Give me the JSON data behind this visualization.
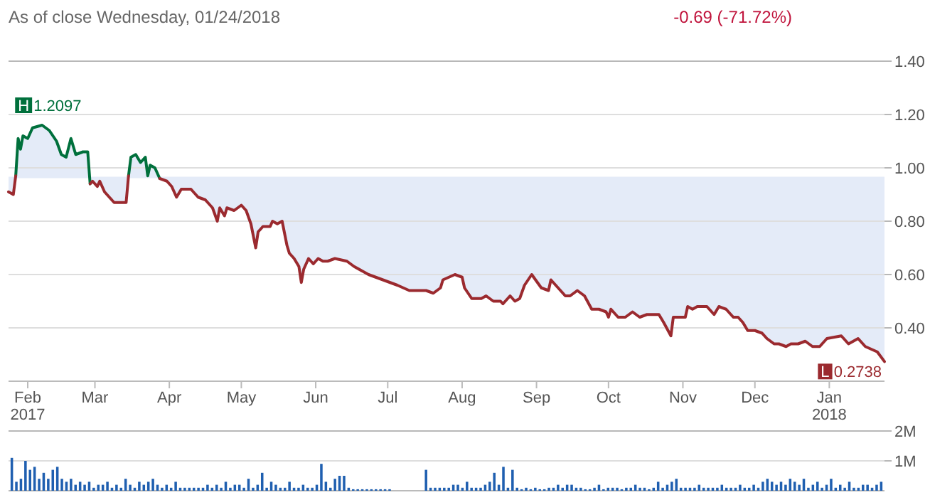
{
  "chart_data": [
    {
      "type": "line",
      "subtitle": "As of close Wednesday, 01/24/2018",
      "annotations": [
        "-0.69 (-71.72%)",
        "H 1.2097",
        {
          "text": "L 0.2738",
          "x": "2018-01-24",
          "y": 0.2738
        }
      ],
      "x": [
        "2017-01-24",
        "2017-01-26",
        "2017-01-27",
        "2017-01-28",
        "2017-01-29",
        "2017-01-30",
        "2017-02-01",
        "2017-02-03",
        "2017-02-07",
        "2017-02-10",
        "2017-02-13",
        "2017-02-15",
        "2017-02-17",
        "2017-02-19",
        "2017-02-21",
        "2017-02-24",
        "2017-02-26",
        "2017-02-27",
        "2017-02-28",
        "2017-03-02",
        "2017-03-03",
        "2017-03-05",
        "2017-03-08",
        "2017-03-09",
        "2017-03-12",
        "2017-03-14",
        "2017-03-15",
        "2017-03-16",
        "2017-03-18",
        "2017-03-20",
        "2017-03-22",
        "2017-03-23",
        "2017-03-24",
        "2017-03-26",
        "2017-03-28",
        "2017-03-31",
        "2017-04-02",
        "2017-04-04",
        "2017-04-06",
        "2017-04-10",
        "2017-04-13",
        "2017-04-16",
        "2017-04-19",
        "2017-04-21",
        "2017-04-22",
        "2017-04-24",
        "2017-04-25",
        "2017-04-28",
        "2017-05-01",
        "2017-05-03",
        "2017-05-05",
        "2017-05-07",
        "2017-05-08",
        "2017-05-10",
        "2017-05-13",
        "2017-05-14",
        "2017-05-16",
        "2017-05-18",
        "2017-05-20",
        "2017-05-21",
        "2017-05-23",
        "2017-05-25",
        "2017-05-26",
        "2017-05-27",
        "2017-05-29",
        "2017-05-31",
        "2017-06-02",
        "2017-06-04",
        "2017-06-06",
        "2017-06-09",
        "2017-06-14",
        "2017-06-17",
        "2017-06-23",
        "2017-06-29",
        "2017-07-05",
        "2017-07-10",
        "2017-07-17",
        "2017-07-20",
        "2017-07-23",
        "2017-07-24",
        "2017-07-29",
        "2017-08-01",
        "2017-08-02",
        "2017-08-05",
        "2017-08-09",
        "2017-08-11",
        "2017-08-14",
        "2017-08-17",
        "2017-08-18",
        "2017-08-21",
        "2017-08-23",
        "2017-08-25",
        "2017-08-27",
        "2017-08-30",
        "2017-09-03",
        "2017-09-06",
        "2017-09-07",
        "2017-09-10",
        "2017-09-13",
        "2017-09-15",
        "2017-09-18",
        "2017-09-21",
        "2017-09-24",
        "2017-09-27",
        "2017-09-30",
        "2017-10-01",
        "2017-10-02",
        "2017-10-05",
        "2017-10-08",
        "2017-10-11",
        "2017-10-14",
        "2017-10-17",
        "2017-10-22",
        "2017-10-24",
        "2017-10-27",
        "2017-10-28",
        "2017-10-30",
        "2017-11-02",
        "2017-11-03",
        "2017-11-05",
        "2017-11-07",
        "2017-11-11",
        "2017-11-14",
        "2017-11-16",
        "2017-11-19",
        "2017-11-22",
        "2017-11-24",
        "2017-11-26",
        "2017-11-28",
        "2017-12-01",
        "2017-12-04",
        "2017-12-06",
        "2017-12-09",
        "2017-12-11",
        "2017-12-14",
        "2017-12-16",
        "2017-12-19",
        "2017-12-22",
        "2017-12-25",
        "2017-12-28",
        "2017-12-31",
        "2018-01-06",
        "2018-01-09",
        "2018-01-13",
        "2018-01-16",
        "2018-01-21",
        "2018-01-24"
      ],
      "series": [
        {
          "type": "line",
          "color": "#00703c",
          "values": [
            null,
            null,
            0.97,
            1.11,
            1.07,
            1.12,
            1.11,
            1.15,
            1.16,
            1.14,
            1.1,
            1.05,
            1.04,
            1.11,
            1.05,
            1.06,
            1.06,
            0.94,
            null,
            null,
            null,
            null,
            null,
            null,
            null,
            null,
            0.97,
            1.04,
            1.05,
            1.02,
            1.04,
            0.97,
            1.01,
            1.0,
            0.96,
            null,
            null,
            null,
            null,
            null,
            null,
            null,
            null,
            null,
            null,
            null,
            null,
            null,
            null,
            null,
            null,
            null,
            null,
            null,
            null,
            null,
            null,
            null,
            null,
            null,
            null,
            null,
            null,
            null,
            null,
            null,
            null,
            null,
            null,
            null,
            null,
            null,
            null,
            null,
            null,
            null,
            null,
            null,
            null,
            null,
            null,
            null,
            null,
            null,
            null,
            null,
            null,
            null,
            null,
            null,
            null,
            null,
            null,
            null,
            null,
            null,
            null,
            null,
            null,
            null,
            null,
            null,
            null,
            null,
            null,
            null,
            null,
            null,
            null,
            null,
            null,
            null,
            null,
            null,
            null,
            null,
            null,
            null,
            null,
            null,
            null,
            null,
            null,
            null,
            null,
            null,
            null,
            null,
            null,
            null,
            null,
            null,
            null,
            null,
            null,
            null,
            null,
            null,
            null,
            null,
            null,
            null,
            null,
            null,
            null,
            null,
            null
          ]
        },
        {
          "type": "line",
          "color": "#9b2a2f",
          "upper": [
            0.9638,
            0.9638,
            0.97,
            1.11,
            1.07,
            1.12,
            1.11,
            1.15,
            1.16,
            1.14,
            1.1,
            1.05,
            1.04,
            1.11,
            1.05,
            1.06,
            1.06,
            0.9638,
            0.9638,
            0.9638,
            0.9638,
            0.9638,
            0.9638,
            0.9638,
            0.9638,
            0.9638,
            0.97,
            1.04,
            1.05,
            1.02,
            1.04,
            0.97,
            1.01,
            1.0,
            0.9638,
            0.9638,
            0.9638,
            0.9638,
            0.9638,
            0.9638,
            0.9638,
            0.9638,
            0.9638,
            0.9638,
            0.9638,
            0.9638,
            0.9638,
            0.9638,
            0.9638,
            0.9638,
            0.9638,
            0.9638,
            0.9638,
            0.9638,
            0.9638,
            0.9638,
            0.9638,
            0.9638,
            0.9638,
            0.9638,
            0.9638,
            0.9638,
            0.9638,
            0.9638,
            0.9638,
            0.9638,
            0.9638,
            0.9638,
            0.9638,
            0.9638,
            0.9638,
            0.9638,
            0.9638,
            0.9638,
            0.9638,
            0.9638,
            0.9638,
            0.9638,
            0.9638,
            0.9638,
            0.9638,
            0.9638,
            0.9638,
            0.9638,
            0.9638,
            0.9638,
            0.9638,
            0.9638,
            0.9638,
            0.9638,
            0.9638,
            0.9638,
            0.9638,
            0.9638,
            0.9638,
            0.9638,
            0.9638,
            0.9638,
            0.9638,
            0.9638,
            0.9638,
            0.9638,
            0.9638,
            0.9638,
            0.9638,
            0.9638,
            0.9638,
            0.9638,
            0.9638,
            0.9638,
            0.9638,
            0.9638,
            0.9638,
            0.9638,
            0.9638,
            0.9638,
            0.9638,
            0.9638,
            0.9638,
            0.9638,
            0.9638,
            0.9638,
            0.9638,
            0.9638,
            0.9638,
            0.9638,
            0.9638,
            0.9638,
            0.9638,
            0.9638,
            0.9638,
            0.9638,
            0.9638,
            0.9638,
            0.9638,
            0.9638,
            0.9638,
            0.9638,
            0.9638,
            0.9638,
            0.9638,
            0.9638,
            0.9638,
            0.9638,
            0.9638,
            0.9638,
            0.9638
          ],
          "lower": [
            0.91,
            0.9,
            0.9638,
            0.9638,
            0.9638,
            0.9638,
            0.9638,
            0.9638,
            0.9638,
            0.9638,
            0.9638,
            0.9638,
            0.9638,
            0.9638,
            0.9638,
            0.9638,
            0.9638,
            0.94,
            0.95,
            0.93,
            0.95,
            0.91,
            0.88,
            0.87,
            0.87,
            0.87,
            0.9638,
            0.9638,
            0.9638,
            0.9638,
            0.9638,
            0.9638,
            0.9638,
            0.9638,
            0.96,
            0.95,
            0.93,
            0.89,
            0.92,
            0.92,
            0.89,
            0.88,
            0.85,
            0.8,
            0.85,
            0.82,
            0.85,
            0.84,
            0.86,
            0.84,
            0.79,
            0.7,
            0.76,
            0.78,
            0.78,
            0.8,
            0.79,
            0.8,
            0.71,
            0.68,
            0.66,
            0.63,
            0.57,
            0.62,
            0.66,
            0.64,
            0.66,
            0.65,
            0.65,
            0.66,
            0.65,
            0.63,
            0.6,
            0.58,
            0.56,
            0.54,
            0.54,
            0.53,
            0.55,
            0.58,
            0.6,
            0.59,
            0.55,
            0.51,
            0.51,
            0.52,
            0.5,
            0.5,
            0.49,
            0.52,
            0.5,
            0.51,
            0.56,
            0.6,
            0.55,
            0.54,
            0.58,
            0.55,
            0.52,
            0.52,
            0.54,
            0.52,
            0.47,
            0.47,
            0.46,
            0.44,
            0.47,
            0.44,
            0.44,
            0.46,
            0.44,
            0.45,
            0.45,
            0.42,
            0.37,
            0.44,
            0.44,
            0.44,
            0.48,
            0.47,
            0.48,
            0.48,
            0.45,
            0.48,
            0.47,
            0.44,
            0.44,
            0.42,
            0.39,
            0.39,
            0.38,
            0.36,
            0.34,
            0.34,
            0.33,
            0.34,
            0.34,
            0.35,
            0.33,
            0.33,
            0.36,
            0.37,
            0.34,
            0.36,
            0.33,
            0.31,
            0.2738
          ],
          "values": [
            0.91,
            0.9,
            0.97,
            null,
            null,
            null,
            null,
            null,
            null,
            null,
            null,
            null,
            null,
            null,
            null,
            null,
            null,
            0.94,
            0.95,
            0.93,
            0.95,
            0.91,
            0.88,
            0.87,
            0.87,
            0.87,
            0.97,
            null,
            null,
            null,
            null,
            null,
            null,
            null,
            0.96,
            0.95,
            0.93,
            0.89,
            0.92,
            0.92,
            0.89,
            0.88,
            0.85,
            0.8,
            0.85,
            0.82,
            0.85,
            0.84,
            0.86,
            0.84,
            0.79,
            0.7,
            0.76,
            0.78,
            0.78,
            0.8,
            0.79,
            0.8,
            0.71,
            0.68,
            0.66,
            0.63,
            0.57,
            0.62,
            0.66,
            0.64,
            0.66,
            0.65,
            0.65,
            0.66,
            0.65,
            0.63,
            0.6,
            0.58,
            0.56,
            0.54,
            0.54,
            0.53,
            0.55,
            0.58,
            0.6,
            0.59,
            0.55,
            0.51,
            0.51,
            0.52,
            0.5,
            0.5,
            0.49,
            0.52,
            0.5,
            0.51,
            0.56,
            0.6,
            0.55,
            0.54,
            0.58,
            0.55,
            0.52,
            0.52,
            0.54,
            0.52,
            0.47,
            0.47,
            0.46,
            0.44,
            0.47,
            0.44,
            0.44,
            0.46,
            0.44,
            0.45,
            0.45,
            0.42,
            0.37,
            0.44,
            0.44,
            0.44,
            0.48,
            0.47,
            0.48,
            0.48,
            0.45,
            0.48,
            0.47,
            0.44,
            0.44,
            0.42,
            0.39,
            0.39,
            0.38,
            0.36,
            0.34,
            0.34,
            0.33,
            0.34,
            0.34,
            0.35,
            0.33,
            0.33,
            0.36,
            0.37,
            0.34,
            0.36,
            0.33,
            0.31,
            0.2738
          ]
        }
      ],
      "ref_lines": [
        {
          "axis": "y",
          "value": 0.9638,
          "color": "#e4ebf8"
        }
      ],
      "xlim": [
        "2017-01-24",
        "2018-01-24"
      ],
      "xticks": [
        {
          "value": "2017-02-01",
          "label": "Feb\n2017"
        },
        {
          "value": "2017-03-01",
          "label": "Mar"
        },
        {
          "value": "2017-04-01",
          "label": "Apr"
        },
        {
          "value": "2017-05-01",
          "label": "May"
        },
        {
          "value": "2017-06-01",
          "label": "Jun"
        },
        {
          "value": "2017-07-01",
          "label": "Jul"
        },
        {
          "value": "2017-08-01",
          "label": "Aug"
        },
        {
          "value": "2017-09-01",
          "label": "Sep"
        },
        {
          "value": "2017-10-01",
          "label": "Oct"
        },
        {
          "value": "2017-11-01",
          "label": "Nov"
        },
        {
          "value": "2017-12-01",
          "label": "Dec"
        },
        {
          "value": "2018-01-01",
          "label": "Jan\n2018"
        }
      ],
      "ylim": [
        0.2,
        1.4
      ],
      "yticks": [
        {
          "value": 0.4,
          "label": "0.40"
        },
        {
          "value": 0.6,
          "label": "0.60"
        },
        {
          "value": 0.8,
          "label": "0.80"
        },
        {
          "value": 1.0,
          "label": "1.00"
        },
        {
          "value": 1.2,
          "label": "1.20"
        },
        {
          "value": 1.4,
          "label": "1.40"
        }
      ],
      "grid": "y"
    },
    {
      "type": "bar",
      "color": "#1f5fb0",
      "categories": [
        null,
        null,
        null,
        null,
        null,
        null,
        null,
        null,
        null,
        null,
        null,
        null,
        null,
        null,
        null,
        null,
        null,
        null,
        null,
        null,
        null,
        null,
        null,
        null,
        null,
        null,
        null,
        null,
        null,
        null,
        null,
        null,
        null,
        null,
        null,
        null,
        null,
        null,
        null,
        null,
        null,
        null,
        null,
        null,
        null,
        null,
        null,
        null,
        null,
        null,
        null,
        null,
        null,
        null,
        null,
        null,
        null,
        null,
        null,
        null,
        null,
        null,
        null,
        null,
        null,
        null,
        null,
        null,
        null,
        null,
        null,
        null,
        null,
        null,
        null,
        null,
        null,
        null,
        null,
        null,
        null,
        null,
        null,
        null,
        null,
        null,
        null,
        null,
        null,
        null,
        null,
        null,
        null,
        null,
        null,
        null,
        null,
        null,
        null,
        null,
        null,
        null,
        null,
        null,
        null,
        null,
        null,
        null,
        null,
        null,
        null,
        null,
        null,
        null,
        null,
        null,
        null,
        null,
        null,
        null,
        null,
        null,
        null,
        null,
        null,
        null,
        null,
        null,
        null,
        null,
        null,
        null,
        null,
        null,
        null,
        null,
        null,
        null,
        null,
        null,
        null,
        null,
        null,
        null,
        null,
        null,
        null,
        null,
        null,
        null,
        null,
        null,
        null,
        null,
        null,
        null,
        null,
        null,
        null,
        null,
        null,
        null,
        null,
        null,
        null,
        null,
        null,
        null,
        null,
        null,
        null,
        null,
        null,
        null,
        null,
        null,
        null,
        null,
        null,
        null,
        null,
        null,
        null,
        null,
        null,
        null,
        null,
        null,
        null,
        null,
        null,
        null
      ],
      "values": [
        1.1,
        0.3,
        0.4,
        1.0,
        0.7,
        0.8,
        0.4,
        0.6,
        0.4,
        0.7,
        0.8,
        0.4,
        0.3,
        0.4,
        0.2,
        0.3,
        0.2,
        0.3,
        0.1,
        0.2,
        0.2,
        0.3,
        0.1,
        0.2,
        0.1,
        0.4,
        0.2,
        0.1,
        0.3,
        0.2,
        0.3,
        0.4,
        0.2,
        0.1,
        0.2,
        0.1,
        0.3,
        0.1,
        0.1,
        0.1,
        0.1,
        0.1,
        0.1,
        0.2,
        0.1,
        0.2,
        0.1,
        0.3,
        0.1,
        0.2,
        0.2,
        0.1,
        0.4,
        0.1,
        0.2,
        0.6,
        0.1,
        0.3,
        0.2,
        0.1,
        0.1,
        0.3,
        0.1,
        0.1,
        0.2,
        0.1,
        0.1,
        0.2,
        0.9,
        0.3,
        0.1,
        0.4,
        0.5,
        0.5,
        0.1,
        0.05,
        0.05,
        0.05,
        0.05,
        0.05,
        0.05,
        0.05,
        0.05,
        0.05,
        0,
        0,
        0,
        0,
        0,
        0,
        0,
        0.7,
        0.1,
        0.1,
        0.1,
        0.1,
        0.1,
        0.2,
        0.2,
        0.1,
        0.3,
        0.1,
        0.1,
        0.1,
        0.2,
        0.3,
        0.6,
        0.2,
        0.8,
        0.1,
        0.7,
        0.1,
        0.05,
        0.1,
        0.05,
        0.1,
        0.05,
        0.05,
        0.1,
        0.1,
        0.2,
        0.1,
        0.2,
        0.2,
        0.1,
        0.1,
        0.05,
        0.05,
        0.1,
        0.2,
        0.05,
        0.1,
        0.1,
        0.1,
        0.05,
        0.1,
        0.1,
        0.2,
        0.1,
        0.1,
        0.05,
        0.1,
        0.3,
        0.1,
        0.2,
        0.3,
        0.4,
        0.1,
        0.1,
        0.1,
        0.1,
        0.2,
        0.1,
        0.1,
        0.1,
        0.1,
        0.2,
        0.1,
        0.1,
        0.1,
        0.2,
        0.1,
        0.1,
        0.2,
        0.1,
        0.3,
        0.4,
        0.3,
        0.2,
        0.3,
        0.2,
        0.4,
        0.3,
        0.2,
        0.4,
        0.1,
        0.2,
        0.3,
        0.1,
        0.2,
        0.4,
        0.1,
        0.2,
        0.1,
        0.3,
        0.1,
        0.1,
        0.2,
        0.2,
        0.1,
        0.2,
        0.3
      ],
      "ylim": [
        0,
        2
      ],
      "yticks": [
        {
          "value": 1,
          "label": "1M"
        },
        {
          "value": 2,
          "label": "2M"
        }
      ],
      "grid": "y"
    }
  ]
}
